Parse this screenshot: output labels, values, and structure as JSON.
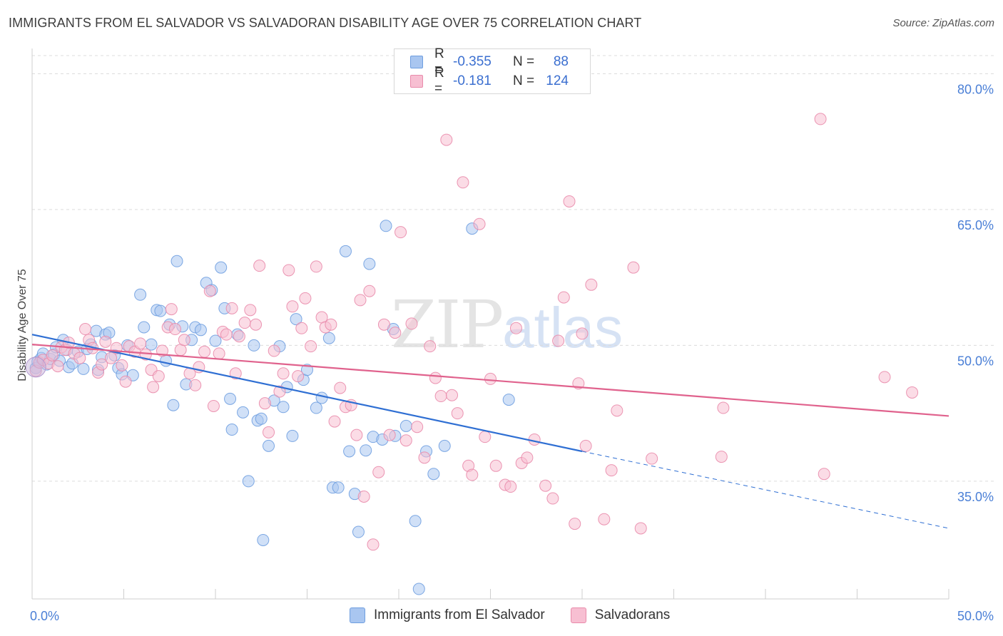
{
  "header": {
    "title": "IMMIGRANTS FROM EL SALVADOR VS SALVADORAN DISABILITY AGE OVER 75 CORRELATION CHART",
    "source": "Source: ZipAtlas.com"
  },
  "watermark": {
    "zip": "ZIP",
    "atlas": "atlas"
  },
  "legend": {
    "rows": [
      {
        "r_label": "R =",
        "r_value": "-0.355",
        "n_label": "N =",
        "n_value": "88",
        "color": "#a9c6f0",
        "border": "#6f9ee0"
      },
      {
        "r_label": "R =",
        "r_value": "-0.181",
        "n_label": "N =",
        "n_value": "124",
        "color": "#f7bfd2",
        "border": "#e98bab"
      }
    ]
  },
  "bottom_legend": {
    "items": [
      {
        "label": "Immigrants from El Salvador",
        "color": "#a9c6f0",
        "border": "#6f9ee0"
      },
      {
        "label": "Salvadorans",
        "color": "#f7bfd2",
        "border": "#e98bab"
      }
    ]
  },
  "chart_data": {
    "type": "scatter",
    "title": "IMMIGRANTS FROM EL SALVADOR VS SALVADORAN DISABILITY AGE OVER 75 CORRELATION CHART",
    "xlabel": "",
    "ylabel": "Disability Age Over 75",
    "xlim": [
      0,
      50
    ],
    "ylim": [
      22,
      82
    ],
    "x_ticks": [
      "0.0%",
      "50.0%"
    ],
    "y_ticks": [
      {
        "value": 80,
        "label": "80.0%"
      },
      {
        "value": 65,
        "label": "65.0%"
      },
      {
        "value": 50,
        "label": "50.0%"
      },
      {
        "value": 35,
        "label": "35.0%"
      }
    ],
    "grid": true,
    "legend_position": "top-center",
    "series": [
      {
        "name": "Immigrants from El Salvador",
        "color": "#6f9ee0",
        "fill": "#a9c6f0",
        "trend": {
          "x0": 0,
          "y0": 51.2,
          "x1": 30,
          "y1": 38.3,
          "dash_x1": 50,
          "dash_y1": 29.8
        },
        "points": [
          [
            0.2,
            47.5
          ],
          [
            0.3,
            48.2
          ],
          [
            0.5,
            48.6
          ],
          [
            0.6,
            49.1
          ],
          [
            0.8,
            47.9
          ],
          [
            1.0,
            48.5
          ],
          [
            1.2,
            49.0
          ],
          [
            1.3,
            49.8
          ],
          [
            1.5,
            48.3
          ],
          [
            1.7,
            50.6
          ],
          [
            1.9,
            49.5
          ],
          [
            2.0,
            47.6
          ],
          [
            2.2,
            48.0
          ],
          [
            2.5,
            49.3
          ],
          [
            2.8,
            47.4
          ],
          [
            3.0,
            49.6
          ],
          [
            3.2,
            50.1
          ],
          [
            3.5,
            51.6
          ],
          [
            3.6,
            47.3
          ],
          [
            3.8,
            48.7
          ],
          [
            4.0,
            51.2
          ],
          [
            4.2,
            51.4
          ],
          [
            4.5,
            48.9
          ],
          [
            4.7,
            47.5
          ],
          [
            4.9,
            46.8
          ],
          [
            5.2,
            50.0
          ],
          [
            5.5,
            46.7
          ],
          [
            5.9,
            55.6
          ],
          [
            6.1,
            52.0
          ],
          [
            6.5,
            50.1
          ],
          [
            6.8,
            53.9
          ],
          [
            7.0,
            53.8
          ],
          [
            7.3,
            48.3
          ],
          [
            7.5,
            52.3
          ],
          [
            7.7,
            43.4
          ],
          [
            7.9,
            59.3
          ],
          [
            8.2,
            52.1
          ],
          [
            8.4,
            45.7
          ],
          [
            8.7,
            50.6
          ],
          [
            8.9,
            52.0
          ],
          [
            9.2,
            51.7
          ],
          [
            9.5,
            56.9
          ],
          [
            9.8,
            56.1
          ],
          [
            10.0,
            50.5
          ],
          [
            10.3,
            58.6
          ],
          [
            10.5,
            54.1
          ],
          [
            10.8,
            44.1
          ],
          [
            10.9,
            40.7
          ],
          [
            11.2,
            51.2
          ],
          [
            11.5,
            42.6
          ],
          [
            11.8,
            35.0
          ],
          [
            12.1,
            50.0
          ],
          [
            12.3,
            41.7
          ],
          [
            12.5,
            41.9
          ],
          [
            12.6,
            28.5
          ],
          [
            12.9,
            38.9
          ],
          [
            13.2,
            43.9
          ],
          [
            13.5,
            49.9
          ],
          [
            13.7,
            43.2
          ],
          [
            13.9,
            45.4
          ],
          [
            14.2,
            40.0
          ],
          [
            14.4,
            52.9
          ],
          [
            14.8,
            46.2
          ],
          [
            15.0,
            47.3
          ],
          [
            15.5,
            43.1
          ],
          [
            15.8,
            44.2
          ],
          [
            16.2,
            50.8
          ],
          [
            16.4,
            34.3
          ],
          [
            16.7,
            34.3
          ],
          [
            17.1,
            60.4
          ],
          [
            17.3,
            38.3
          ],
          [
            17.6,
            33.6
          ],
          [
            17.8,
            29.4
          ],
          [
            18.2,
            38.4
          ],
          [
            18.4,
            59.0
          ],
          [
            18.6,
            39.9
          ],
          [
            19.1,
            39.6
          ],
          [
            19.3,
            63.2
          ],
          [
            19.7,
            51.8
          ],
          [
            19.8,
            40.0
          ],
          [
            20.4,
            41.1
          ],
          [
            20.9,
            30.6
          ],
          [
            21.1,
            23.1
          ],
          [
            21.5,
            38.3
          ],
          [
            21.9,
            35.8
          ],
          [
            22.5,
            38.9
          ],
          [
            24.0,
            62.9
          ],
          [
            26.0,
            44.0
          ]
        ]
      },
      {
        "name": "Salvadorans",
        "color": "#e98bab",
        "fill": "#f7bfd2",
        "trend": {
          "x0": 0,
          "y0": 50.1,
          "x1": 50,
          "y1": 42.2
        },
        "points": [
          [
            0.2,
            47.2
          ],
          [
            0.4,
            48.1
          ],
          [
            0.6,
            48.4
          ],
          [
            0.9,
            48.0
          ],
          [
            1.1,
            48.9
          ],
          [
            1.4,
            47.7
          ],
          [
            1.6,
            49.8
          ],
          [
            1.8,
            49.5
          ],
          [
            2.0,
            50.3
          ],
          [
            2.3,
            49.1
          ],
          [
            2.6,
            48.6
          ],
          [
            2.9,
            51.8
          ],
          [
            3.1,
            50.6
          ],
          [
            3.3,
            49.7
          ],
          [
            3.6,
            47.0
          ],
          [
            3.8,
            47.9
          ],
          [
            4.0,
            50.4
          ],
          [
            4.3,
            48.6
          ],
          [
            4.6,
            49.7
          ],
          [
            4.9,
            47.8
          ],
          [
            5.1,
            46.0
          ],
          [
            5.3,
            49.9
          ],
          [
            5.6,
            49.3
          ],
          [
            5.9,
            50.2
          ],
          [
            6.2,
            49.0
          ],
          [
            6.5,
            47.3
          ],
          [
            6.6,
            45.4
          ],
          [
            6.9,
            46.6
          ],
          [
            7.1,
            49.4
          ],
          [
            7.4,
            52.0
          ],
          [
            7.6,
            54.0
          ],
          [
            7.8,
            51.8
          ],
          [
            8.1,
            49.5
          ],
          [
            8.3,
            50.6
          ],
          [
            8.6,
            46.9
          ],
          [
            8.9,
            45.6
          ],
          [
            9.1,
            47.6
          ],
          [
            9.4,
            49.3
          ],
          [
            9.7,
            56.0
          ],
          [
            9.9,
            43.3
          ],
          [
            10.2,
            49.1
          ],
          [
            10.4,
            51.5
          ],
          [
            10.6,
            51.2
          ],
          [
            10.9,
            54.1
          ],
          [
            11.1,
            46.9
          ],
          [
            11.3,
            51.0
          ],
          [
            11.6,
            52.5
          ],
          [
            11.9,
            53.9
          ],
          [
            12.2,
            52.3
          ],
          [
            12.4,
            58.8
          ],
          [
            12.7,
            43.6
          ],
          [
            12.9,
            40.4
          ],
          [
            13.2,
            49.4
          ],
          [
            13.5,
            44.9
          ],
          [
            13.7,
            46.9
          ],
          [
            14.0,
            58.3
          ],
          [
            14.2,
            54.3
          ],
          [
            14.5,
            46.6
          ],
          [
            14.7,
            51.9
          ],
          [
            14.9,
            55.2
          ],
          [
            15.2,
            49.9
          ],
          [
            15.5,
            58.7
          ],
          [
            15.8,
            53.1
          ],
          [
            16.0,
            52.0
          ],
          [
            16.3,
            52.3
          ],
          [
            16.5,
            41.6
          ],
          [
            16.8,
            45.3
          ],
          [
            17.1,
            43.2
          ],
          [
            17.4,
            43.4
          ],
          [
            17.7,
            40.1
          ],
          [
            17.9,
            55.0
          ],
          [
            18.1,
            33.3
          ],
          [
            18.4,
            56.0
          ],
          [
            18.6,
            28.0
          ],
          [
            18.9,
            36.0
          ],
          [
            19.2,
            52.3
          ],
          [
            19.5,
            40.1
          ],
          [
            19.8,
            51.4
          ],
          [
            20.1,
            62.5
          ],
          [
            20.4,
            39.5
          ],
          [
            20.7,
            52.4
          ],
          [
            21.0,
            41.0
          ],
          [
            21.4,
            37.6
          ],
          [
            21.7,
            49.9
          ],
          [
            22.0,
            46.4
          ],
          [
            22.3,
            44.4
          ],
          [
            22.6,
            72.7
          ],
          [
            22.9,
            44.5
          ],
          [
            23.2,
            42.5
          ],
          [
            23.5,
            68.0
          ],
          [
            23.8,
            36.7
          ],
          [
            24.0,
            35.7
          ],
          [
            24.4,
            63.4
          ],
          [
            24.7,
            39.9
          ],
          [
            25.0,
            46.3
          ],
          [
            25.3,
            36.7
          ],
          [
            25.8,
            34.6
          ],
          [
            26.1,
            34.4
          ],
          [
            26.4,
            51.9
          ],
          [
            26.7,
            37.0
          ],
          [
            27.0,
            37.6
          ],
          [
            27.4,
            39.6
          ],
          [
            28.0,
            34.5
          ],
          [
            28.4,
            33.1
          ],
          [
            28.7,
            50.5
          ],
          [
            29.0,
            55.3
          ],
          [
            29.3,
            65.9
          ],
          [
            29.6,
            30.3
          ],
          [
            29.8,
            45.8
          ],
          [
            30.0,
            51.3
          ],
          [
            30.2,
            38.9
          ],
          [
            30.5,
            56.7
          ],
          [
            31.2,
            30.8
          ],
          [
            31.6,
            36.2
          ],
          [
            31.9,
            42.8
          ],
          [
            32.8,
            58.6
          ],
          [
            33.2,
            29.8
          ],
          [
            33.8,
            37.5
          ],
          [
            37.6,
            37.7
          ],
          [
            37.7,
            43.1
          ],
          [
            43.0,
            75.0
          ],
          [
            43.2,
            35.8
          ],
          [
            46.5,
            46.5
          ],
          [
            48.0,
            44.8
          ]
        ]
      }
    ]
  }
}
